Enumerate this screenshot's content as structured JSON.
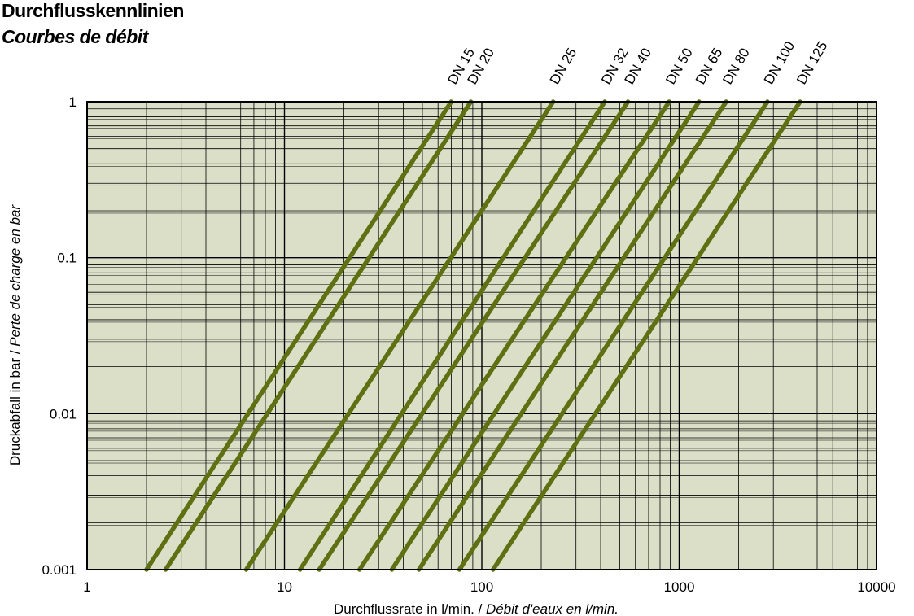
{
  "title": "Durchflusskennlinien",
  "subtitle": "Courbes de débit",
  "chart_data": {
    "type": "line",
    "xlabel": "Durchflussrate in l/min.",
    "xlabel_fr": "Débit d'eaux en l/min.",
    "ylabel": "Druckabfall in bar",
    "ylabel_fr": "Perte de charge en bar",
    "xscale": "log",
    "yscale": "log",
    "xlim": [
      1,
      10000
    ],
    "ylim": [
      0.001,
      1
    ],
    "xticks": [
      "1",
      "10",
      "100",
      "1000",
      "10000"
    ],
    "yticks": [
      "0.001",
      "0.01",
      "0.1",
      "1"
    ],
    "grid": true,
    "background": "#dcdfc8",
    "line_color": "#5f7012",
    "series": [
      {
        "name": "DN 15",
        "x": [
          2.0,
          70
        ],
        "y": [
          0.001,
          1
        ]
      },
      {
        "name": "DN 20",
        "x": [
          2.5,
          88
        ],
        "y": [
          0.001,
          1
        ]
      },
      {
        "name": "DN 25",
        "x": [
          6.4,
          230
        ],
        "y": [
          0.001,
          1
        ]
      },
      {
        "name": "DN 32",
        "x": [
          12,
          420
        ],
        "y": [
          0.001,
          1
        ]
      },
      {
        "name": "DN 40",
        "x": [
          15,
          550
        ],
        "y": [
          0.001,
          1
        ]
      },
      {
        "name": "DN 50",
        "x": [
          24,
          890
        ],
        "y": [
          0.001,
          1
        ]
      },
      {
        "name": "DN 65",
        "x": [
          35,
          1260
        ],
        "y": [
          0.001,
          1
        ]
      },
      {
        "name": "DN 80",
        "x": [
          48,
          1730
        ],
        "y": [
          0.001,
          1
        ]
      },
      {
        "name": "DN 100",
        "x": [
          77,
          2800
        ],
        "y": [
          0.001,
          1
        ]
      },
      {
        "name": "DN 125",
        "x": [
          114,
          4100
        ],
        "y": [
          0.001,
          1
        ]
      }
    ]
  }
}
